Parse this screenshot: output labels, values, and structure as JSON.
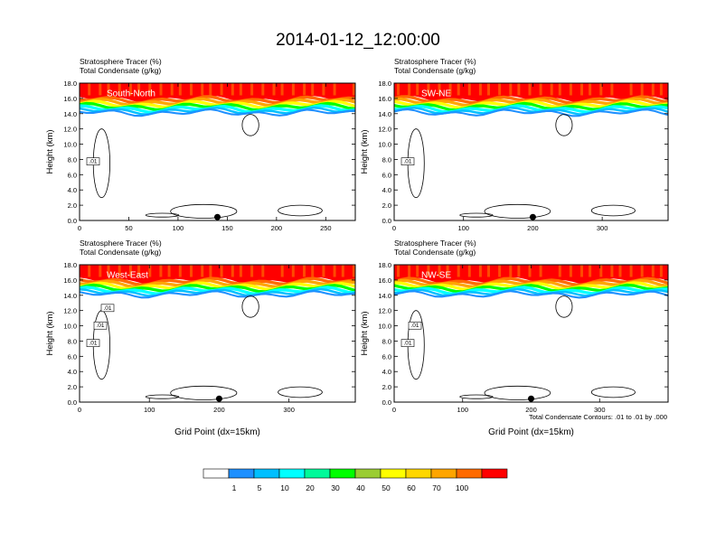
{
  "figure": {
    "title": "2014-01-12_12:00:00",
    "footnote": "Total Condensate Contours: .01 to .01 by .000"
  },
  "chart_data": [
    {
      "type": "heatmap",
      "panel_label": "South-North",
      "title_line1": "Stratosphere Tracer   (%)",
      "title_line2": "Total Condensate   (g/kg)",
      "ylabel": "Height (km)",
      "xlabel": "",
      "xlim": [
        0,
        280
      ],
      "ylim": [
        0,
        18
      ],
      "xticks": [
        0,
        50,
        100,
        150,
        200,
        250
      ],
      "yticks": [
        "0.0",
        "2.0",
        "4.0",
        "6.0",
        "8.0",
        "10.0",
        "12.0",
        "14.0",
        "16.0",
        "18.0"
      ],
      "marker_x": 140,
      "contour_labels": [
        ".01"
      ]
    },
    {
      "type": "heatmap",
      "panel_label": "SW-NE",
      "title_line1": "Stratosphere Tracer   (%)",
      "title_line2": "Total Condensate   (g/kg)",
      "ylabel": "Height (km)",
      "xlabel": "",
      "xlim": [
        0,
        395
      ],
      "ylim": [
        0,
        18
      ],
      "xticks": [
        0,
        100,
        200,
        300
      ],
      "yticks": [
        "0.0",
        "2.0",
        "4.0",
        "6.0",
        "8.0",
        "10.0",
        "12.0",
        "14.0",
        "16.0",
        "18.0"
      ],
      "marker_x": 200,
      "contour_labels": [
        ".01"
      ]
    },
    {
      "type": "heatmap",
      "panel_label": "West-East",
      "title_line1": "Stratosphere Tracer   (%)",
      "title_line2": "Total Condensate   (g/kg)",
      "ylabel": "Height (km)",
      "xlabel": "Grid Point (dx=15km)",
      "xlim": [
        0,
        395
      ],
      "ylim": [
        0,
        18
      ],
      "xticks": [
        0,
        100,
        200,
        300
      ],
      "yticks": [
        "0.0",
        "2.0",
        "4.0",
        "6.0",
        "8.0",
        "10.0",
        "12.0",
        "14.0",
        "16.0",
        "18.0"
      ],
      "marker_x": 200,
      "contour_labels": [
        ".01",
        ".01",
        ".01"
      ]
    },
    {
      "type": "heatmap",
      "panel_label": "NW-SE",
      "title_line1": "Stratosphere Tracer   (%)",
      "title_line2": "Total Condensate   (g/kg)",
      "ylabel": "Height (km)",
      "xlabel": "Grid Point (dx=15km)",
      "xlim": [
        0,
        400
      ],
      "ylim": [
        0,
        18
      ],
      "xticks": [
        0,
        100,
        200,
        300
      ],
      "yticks": [
        "0.0",
        "2.0",
        "4.0",
        "6.0",
        "8.0",
        "10.0",
        "12.0",
        "14.0",
        "16.0",
        "18.0"
      ],
      "marker_x": 200,
      "contour_labels": [
        ".01",
        ".01"
      ]
    }
  ],
  "colorbar": {
    "labels": [
      "1",
      "5",
      "10",
      "20",
      "30",
      "40",
      "50",
      "60",
      "70",
      "100"
    ],
    "colors": [
      "#ffffff",
      "#1e90ff",
      "#00bfff",
      "#00ffff",
      "#00fa9a",
      "#00ff00",
      "#9acd32",
      "#ffff00",
      "#ffd700",
      "#ffa500",
      "#ff6a00",
      "#ff0000"
    ]
  }
}
